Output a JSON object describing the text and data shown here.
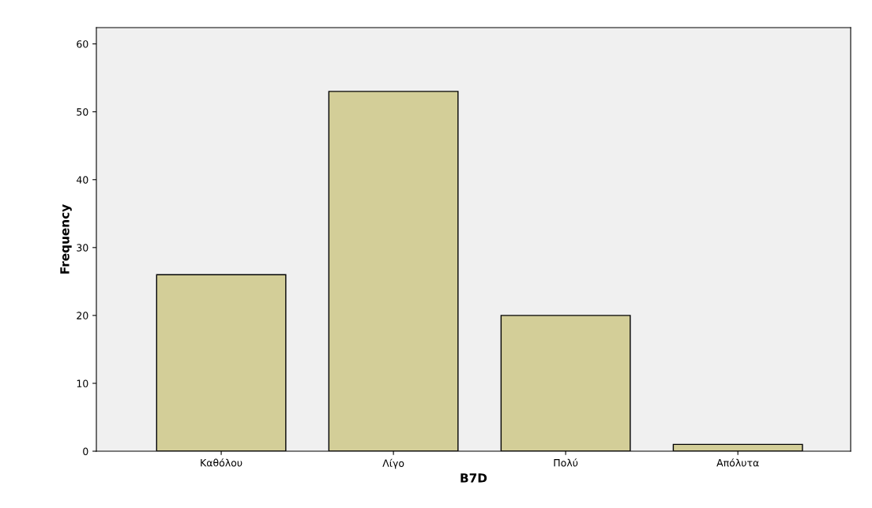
{
  "chart_data": {
    "type": "bar",
    "xlabel": "B7D",
    "ylabel": "Frequency",
    "categories": [
      "Καθόλου",
      "Λίγο",
      "Πολύ",
      "Απόλυτα"
    ],
    "values": [
      26,
      53,
      20,
      1
    ],
    "color": "#d3ce98",
    "ylim": [
      0,
      62.4
    ],
    "yticks": [
      0,
      10,
      20,
      30,
      40,
      50,
      60
    ],
    "grid": false,
    "legend": false
  }
}
